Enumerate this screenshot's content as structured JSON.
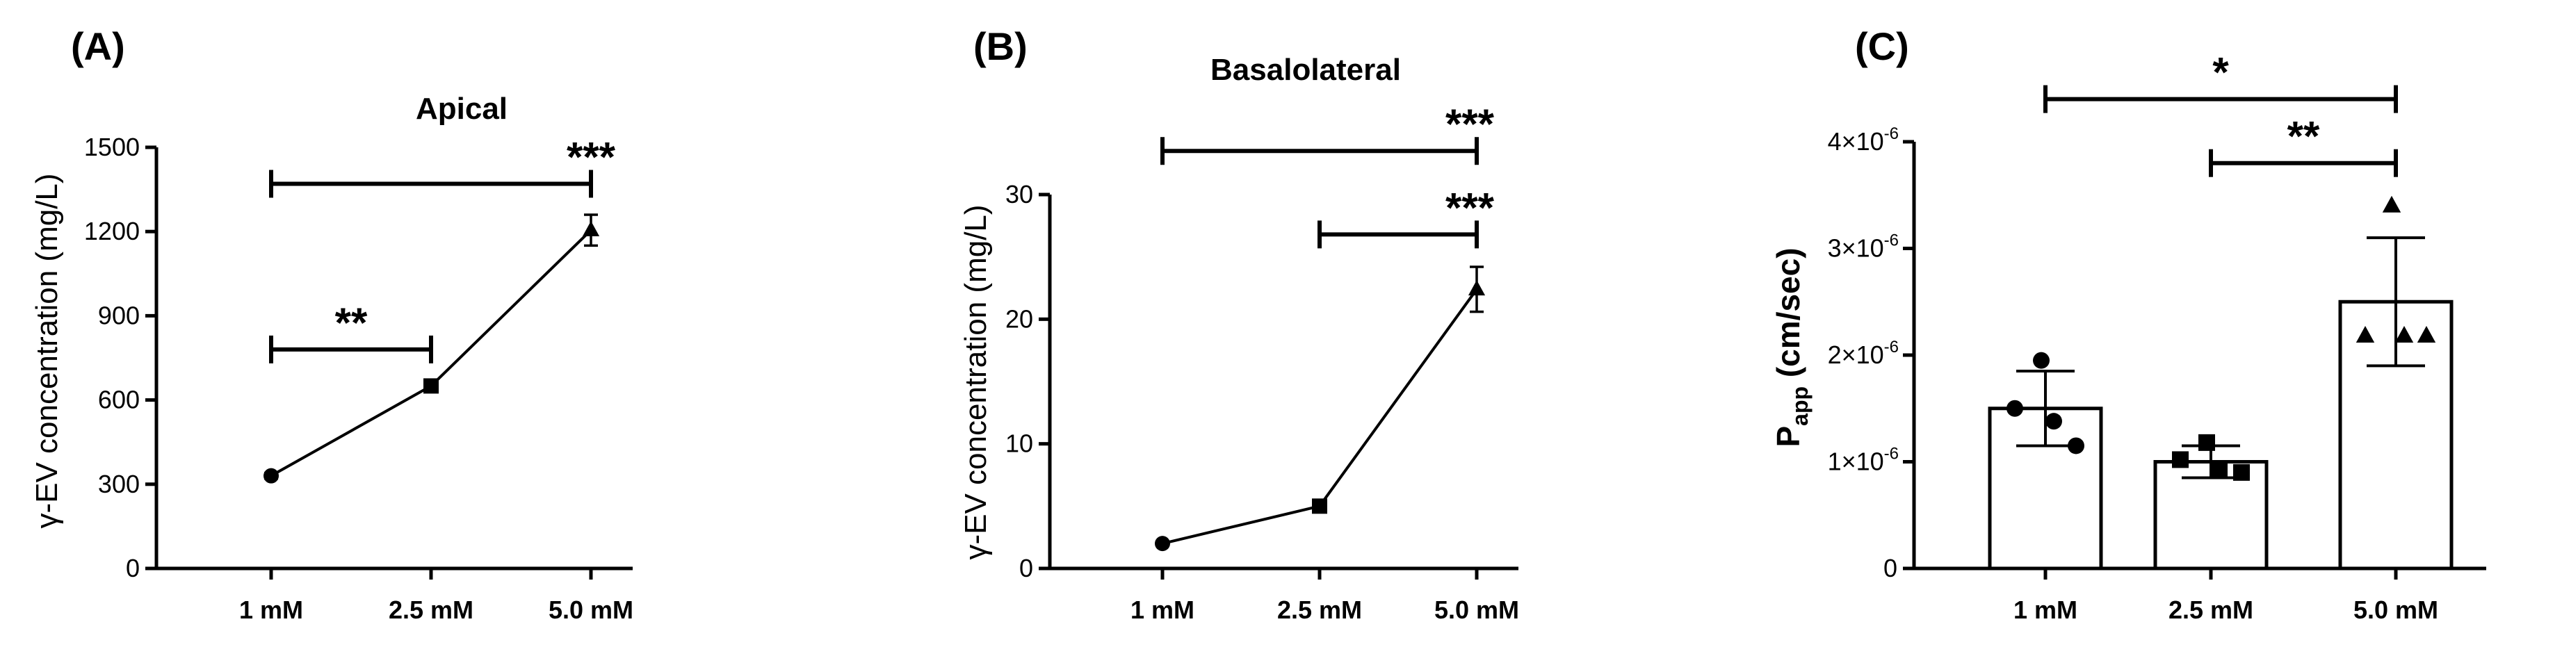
{
  "chart_data": [
    {
      "id": "A",
      "panel_label": "(A)",
      "type": "line",
      "title": "Apical",
      "xlabel": "",
      "ylabel": "γ-EV concentration (mg/L)",
      "categories": [
        "1 mM",
        "2.5 mM",
        "5.0 mM"
      ],
      "values": [
        330,
        650,
        1205
      ],
      "errors": [
        10,
        12,
        55
      ],
      "markers": [
        "circle",
        "square",
        "triangle"
      ],
      "ylim": [
        0,
        1500
      ],
      "yticks": [
        0,
        300,
        600,
        900,
        1200,
        1500
      ],
      "ytick_labels": [
        "0",
        "300",
        "600",
        "900",
        "1200",
        "1500"
      ],
      "significance": [
        {
          "from": 0,
          "to": 2,
          "y": 1370,
          "label": ""
        },
        {
          "from": 0,
          "to": 1,
          "y": 780,
          "label": "**"
        },
        {
          "from": 2,
          "to": 2,
          "y": 1370,
          "label": "***"
        }
      ]
    },
    {
      "id": "B",
      "panel_label": "(B)",
      "type": "line",
      "title": "Basalolateral",
      "xlabel": "",
      "ylabel": "γ-EV concentration (mg/L)",
      "categories": [
        "1 mM",
        "2.5 mM",
        "5.0 mM"
      ],
      "values": [
        2.0,
        5.0,
        22.4
      ],
      "errors": [
        0.2,
        0.3,
        1.8
      ],
      "markers": [
        "circle",
        "square",
        "triangle"
      ],
      "ylim": [
        0,
        30
      ],
      "yticks": [
        0,
        10,
        20,
        30
      ],
      "ytick_labels": [
        "0",
        "10",
        "20",
        "30"
      ],
      "significance": [
        {
          "from": 0,
          "to": 2,
          "y": 33.5,
          "label": "***"
        },
        {
          "from": 1,
          "to": 2,
          "y": 26.8,
          "label": "***"
        }
      ]
    },
    {
      "id": "C",
      "panel_label": "(C)",
      "type": "bar",
      "title": "",
      "xlabel": "",
      "ylabel_main": "P",
      "ylabel_sub": "app",
      "ylabel_rest": " (cm/sec)",
      "categories": [
        "1 mM",
        "2.5 mM",
        "5.0 mM"
      ],
      "values": [
        1.5e-06,
        1e-06,
        2.5e-06
      ],
      "errors": [
        3.5e-07,
        1.5e-07,
        6e-07
      ],
      "markers": [
        "circle",
        "square",
        "triangle"
      ],
      "points": [
        [
          1.95e-06,
          1.5e-06,
          1.38e-06,
          1.15e-06
        ],
        [
          1.18e-06,
          1.02e-06,
          9.2e-07,
          9e-07
        ],
        [
          3.4e-06,
          2.18e-06,
          2.18e-06,
          2.18e-06
        ]
      ],
      "ylim": [
        0,
        4e-06
      ],
      "yticks": [
        0,
        1e-06,
        2e-06,
        3e-06,
        4e-06
      ],
      "ytick_labels": [
        "0",
        "1×10",
        "2×10",
        "3×10",
        "4×10"
      ],
      "ytick_exponent": "-6",
      "significance": [
        {
          "from": 0,
          "to": 2,
          "y": 4.4e-06,
          "label": "*"
        },
        {
          "from": 1,
          "to": 2,
          "y": 3.8e-06,
          "label": "**"
        }
      ]
    }
  ]
}
